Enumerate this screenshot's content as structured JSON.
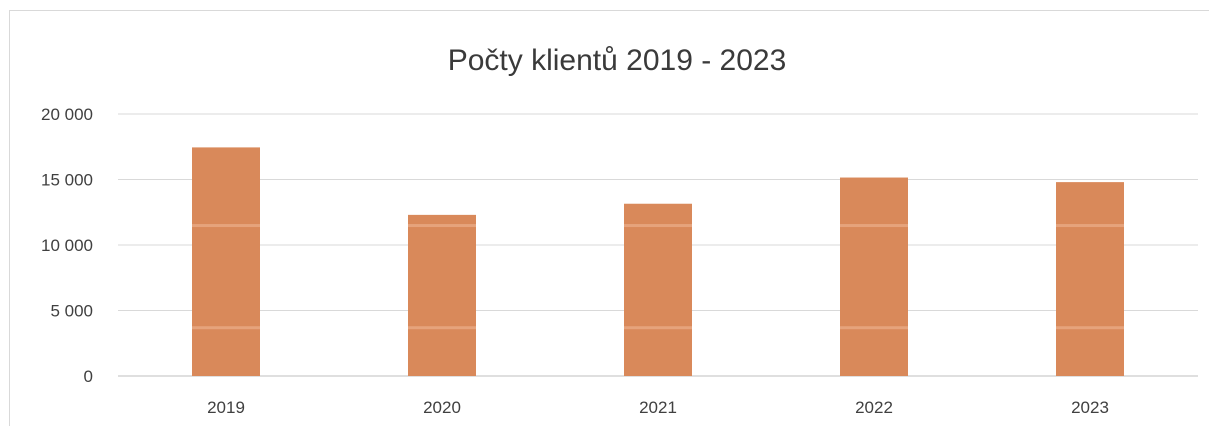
{
  "chart_data": {
    "type": "bar",
    "title": "Počty klientů 2019 - 2023",
    "categories": [
      "2019",
      "2020",
      "2021",
      "2022",
      "2023"
    ],
    "series": [
      {
        "values": [
          17450,
          12300,
          13150,
          15150,
          14800
        ]
      }
    ],
    "ylim": [
      0,
      20000
    ],
    "yticks": [
      0,
      5000,
      10000,
      15000,
      20000
    ],
    "ytick_labels": [
      "0",
      "5 000",
      "10 000",
      "15 000",
      "20 000"
    ],
    "grid": true,
    "legend": "none",
    "bar_color": "#d9895a",
    "bar_highlight_color": "#e6a37c"
  }
}
